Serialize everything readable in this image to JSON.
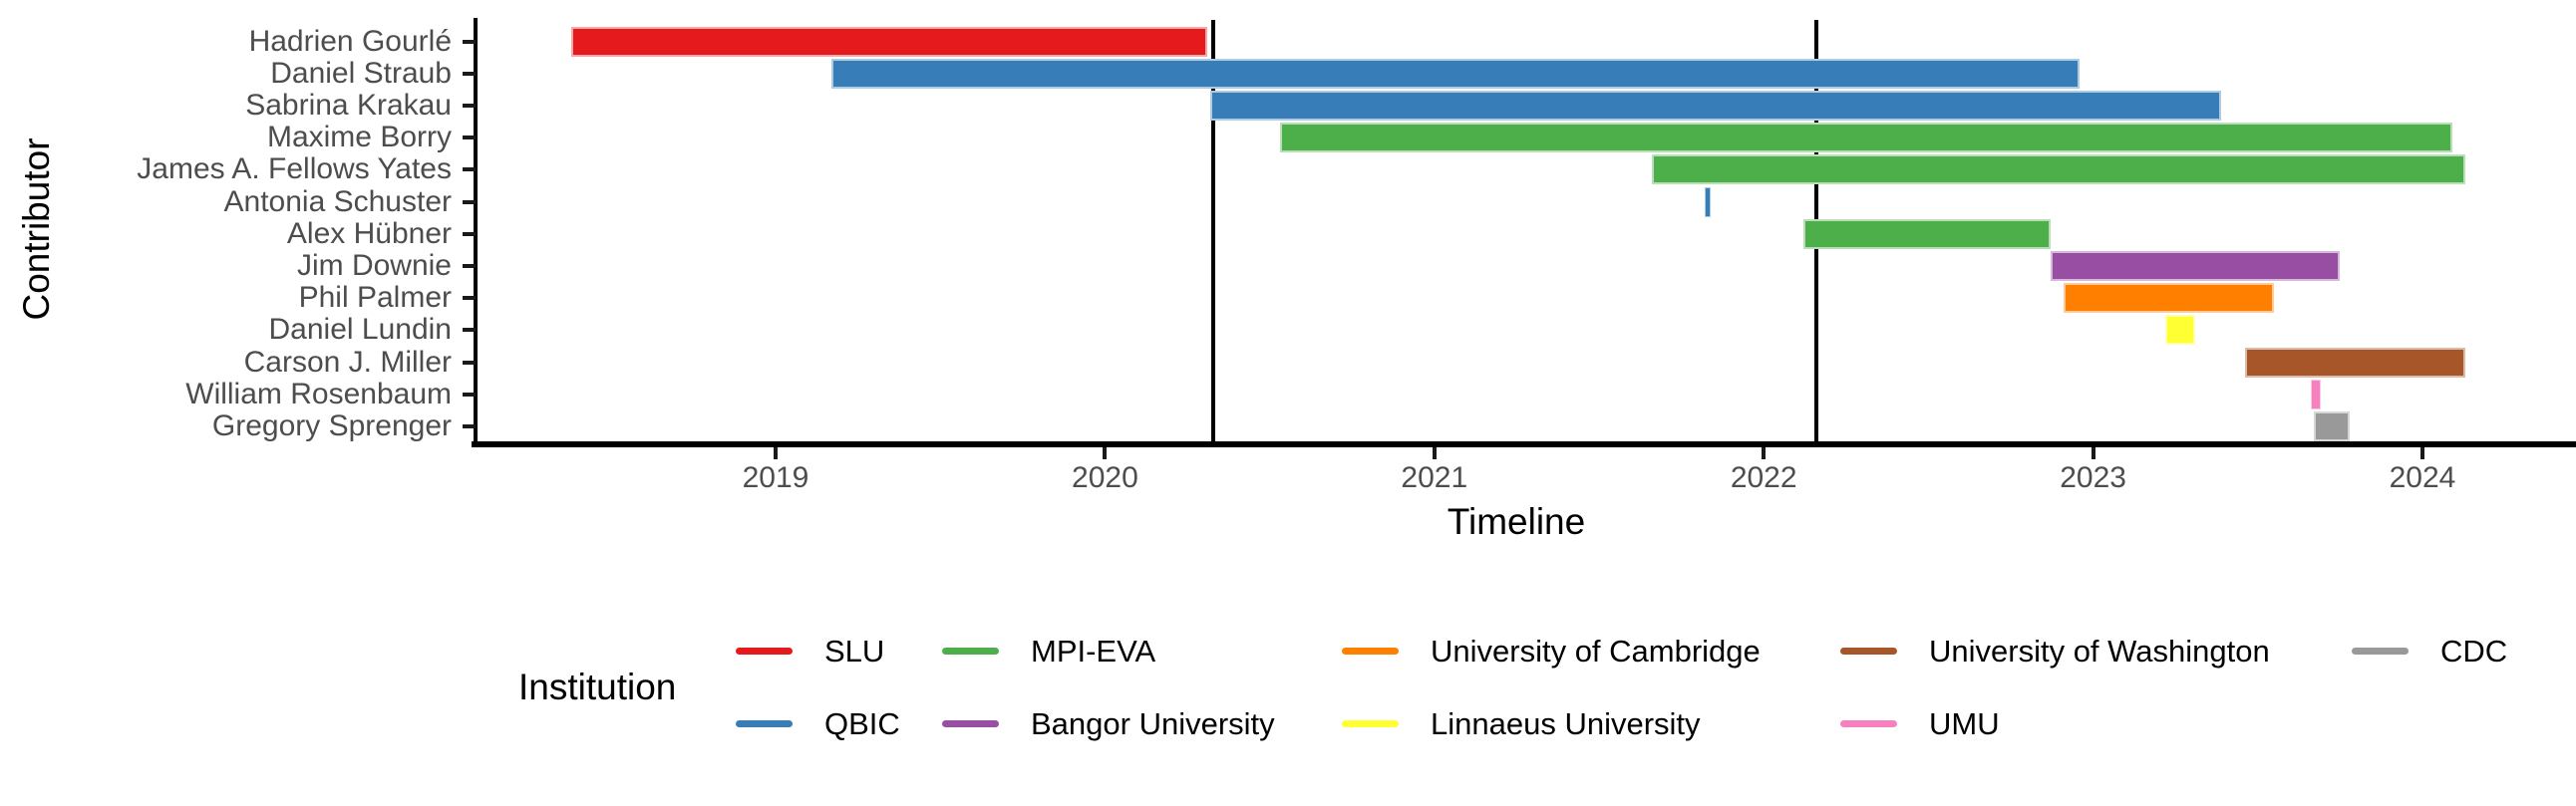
{
  "chart_data": {
    "type": "gantt",
    "xlabel": "Timeline",
    "ylabel": "Contributor",
    "legend_title": "Institution",
    "x_ticks": [
      {
        "value": 2019,
        "label": "2019"
      },
      {
        "value": 2020,
        "label": "2020"
      },
      {
        "value": 2021,
        "label": "2021"
      },
      {
        "value": 2022,
        "label": "2022"
      },
      {
        "value": 2023,
        "label": "2023"
      },
      {
        "value": 2024,
        "label": "2024"
      }
    ],
    "xlim": [
      2018.1,
      2024.47
    ],
    "grid": "off",
    "legend_position": "bottom",
    "milestones": [
      2020.33,
      2022.16
    ],
    "institutions": [
      {
        "name": "SLU",
        "color": "#E41A1C",
        "light": "#F5A9AA"
      },
      {
        "name": "QBIC",
        "color": "#377EB8",
        "light": "#AFCBE3"
      },
      {
        "name": "MPI-EVA",
        "color": "#4DAF4A",
        "light": "#B8DFB7"
      },
      {
        "name": "Bangor University",
        "color": "#984EA3",
        "light": "#D6B8DA"
      },
      {
        "name": "University of Cambridge",
        "color": "#FF7F00",
        "light": "#FFCC99"
      },
      {
        "name": "Linnaeus University",
        "color": "#FFFF33",
        "light": "#FFFFAD"
      },
      {
        "name": "University of Washington",
        "color": "#A65628",
        "light": "#DBBBA9"
      },
      {
        "name": "UMU",
        "color": "#F781BF",
        "light": "#FCCDE5"
      },
      {
        "name": "CDC",
        "color": "#999999",
        "light": "#D6D6D6"
      }
    ],
    "contributors": [
      {
        "name": "Hadrien Gourlé",
        "institution": "SLU",
        "start": 2018.38,
        "end": 2020.31
      },
      {
        "name": "Daniel Straub",
        "institution": "QBIC",
        "start": 2019.17,
        "end": 2022.96
      },
      {
        "name": "Sabrina Krakau",
        "institution": "QBIC",
        "start": 2020.32,
        "end": 2023.39
      },
      {
        "name": "Maxime Borry",
        "institution": "MPI-EVA",
        "start": 2020.53,
        "end": 2024.09
      },
      {
        "name": "James A. Fellows Yates",
        "institution": "MPI-EVA",
        "start": 2021.66,
        "end": 2024.13
      },
      {
        "name": "Antonia Schuster",
        "institution": "QBIC",
        "start": 2021.82,
        "end": 2021.84
      },
      {
        "name": "Alex Hübner",
        "institution": "MPI-EVA",
        "start": 2022.12,
        "end": 2022.87
      },
      {
        "name": "Jim Downie",
        "institution": "Bangor University",
        "start": 2022.87,
        "end": 2023.75
      },
      {
        "name": "Phil Palmer",
        "institution": "University of Cambridge",
        "start": 2022.91,
        "end": 2023.55
      },
      {
        "name": "Daniel Lundin",
        "institution": "Linnaeus University",
        "start": 2023.22,
        "end": 2023.31
      },
      {
        "name": "Carson J. Miller",
        "institution": "University of Washington",
        "start": 2023.46,
        "end": 2024.13
      },
      {
        "name": "William Rosenbaum",
        "institution": "UMU",
        "start": 2023.66,
        "end": 2023.69
      },
      {
        "name": "Gregory Sprenger",
        "institution": "CDC",
        "start": 2023.67,
        "end": 2023.78
      }
    ]
  }
}
